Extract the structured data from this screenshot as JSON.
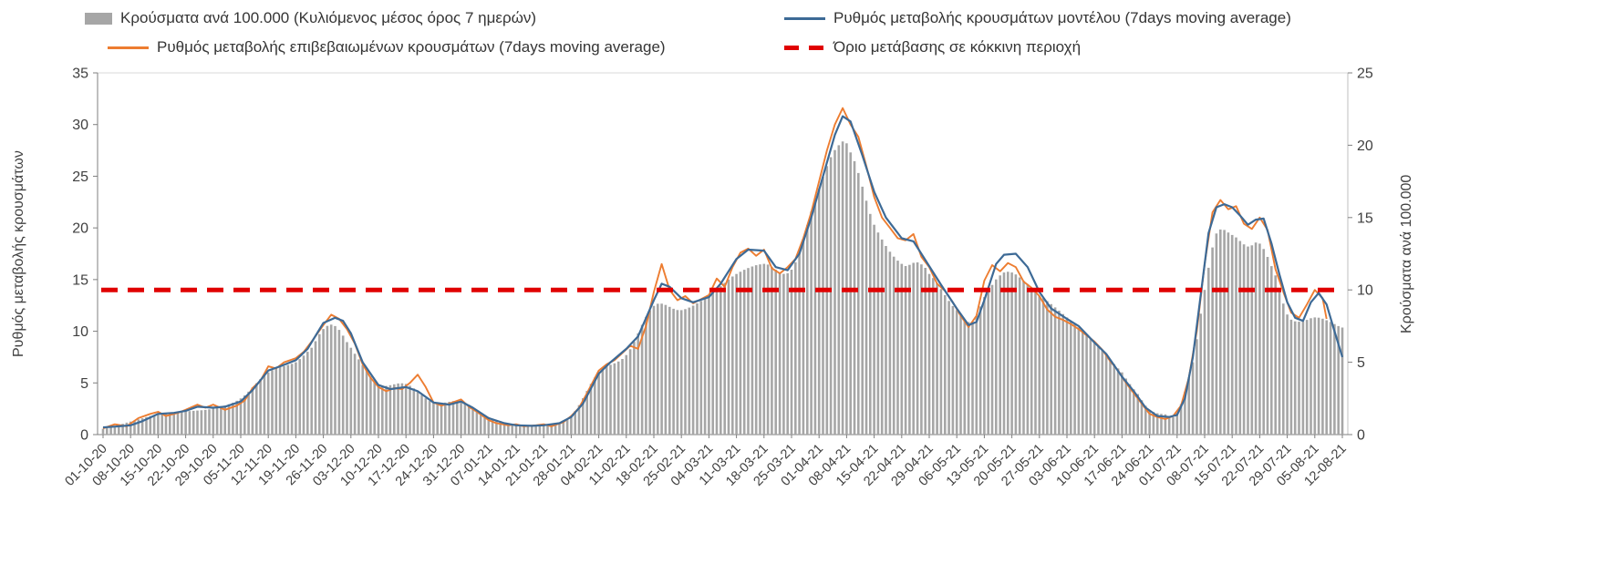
{
  "legend": {
    "bars": "Κρούσματα ανά 100.000 (Κυλιόμενος μέσος όρος 7 ημερών)",
    "model": "Ρυθμός μεταβολής κρουσμάτων μοντέλου (7days moving average)",
    "confirmed": "Ρυθμός μεταβολής επιβεβαιωμένων κρουσμάτων (7days moving average)",
    "threshold": "Όριο μετάβασης σε κόκκινη περιοχή"
  },
  "axes": {
    "left_title": "Ρυθμός μεταβολής κρουσμάτων",
    "right_title": "Κρούσματα ανά 100.000",
    "left_ticks": [
      0,
      5,
      10,
      15,
      20,
      25,
      30,
      35
    ],
    "right_ticks": [
      0,
      5,
      10,
      15,
      20,
      25
    ],
    "left_range": [
      0,
      35
    ],
    "right_range": [
      0,
      25
    ]
  },
  "colors": {
    "bars": "#a6a6a6",
    "model": "#3d6a96",
    "confirmed": "#ed7d31",
    "threshold": "#e00000",
    "axis": "#7f7f7f",
    "frame": "#d9d9d9",
    "text": "#404040"
  },
  "chart_data": {
    "type": "combo-bar-line",
    "x_unit": "days since 01-10-20",
    "x_tick_interval_days": 7,
    "categories": [
      "01-10-20",
      "08-10-20",
      "15-10-20",
      "22-10-20",
      "29-10-20",
      "05-11-20",
      "12-11-20",
      "19-11-20",
      "26-11-20",
      "03-12-20",
      "10-12-20",
      "17-12-20",
      "24-12-20",
      "31-12-20",
      "07-01-21",
      "14-01-21",
      "21-01-21",
      "28-01-21",
      "04-02-21",
      "11-02-21",
      "18-02-21",
      "25-02-21",
      "04-03-21",
      "11-03-21",
      "18-03-21",
      "25-03-21",
      "01-04-21",
      "08-04-21",
      "15-04-21",
      "22-04-21",
      "29-04-21",
      "06-05-21",
      "13-05-21",
      "20-05-21",
      "27-05-21",
      "03-06-21",
      "10-06-21",
      "17-06-21",
      "24-06-21",
      "01-07-21",
      "08-07-21",
      "15-07-21",
      "22-07-21",
      "29-07-21",
      "05-08-21",
      "12-08-21"
    ],
    "threshold": {
      "name": "Όριο μετάβασης σε κόκκινη περιοχή",
      "left_axis_value": 14,
      "right_axis_value": 10
    },
    "series": [
      {
        "name": "Κρούσματα ανά 100.000 (Κυλιόμενος μέσος όρος 7 ημερών)",
        "type": "bar",
        "axis": "right",
        "x": [
          0,
          7,
          14,
          21,
          28,
          35,
          42,
          49,
          53,
          56,
          59,
          63,
          66,
          70,
          77,
          84,
          91,
          98,
          105,
          112,
          119,
          126,
          133,
          140,
          147,
          154,
          161,
          168,
          175,
          182,
          187,
          190,
          196,
          203,
          207,
          210,
          217,
          221,
          224,
          228,
          231,
          235,
          238,
          245,
          252,
          259,
          263,
          266,
          270,
          273,
          277,
          280,
          283,
          287,
          291,
          294,
          298,
          301,
          304,
          308,
          311,
          315
        ],
        "values": [
          0.4,
          0.9,
          1.4,
          1.6,
          1.8,
          2.5,
          4.3,
          5.0,
          6.0,
          7.3,
          7.5,
          6.0,
          4.8,
          3.4,
          3.5,
          2.2,
          2.3,
          1.2,
          0.7,
          0.7,
          1.3,
          4.3,
          5.5,
          8.9,
          8.6,
          9.6,
          11.1,
          11.8,
          11.4,
          17.0,
          20.0,
          19.5,
          14.5,
          11.8,
          11.9,
          11.1,
          8.6,
          7.8,
          9.5,
          11.0,
          11.2,
          10.4,
          9.6,
          8.1,
          6.4,
          4.3,
          2.8,
          1.7,
          1.4,
          1.5,
          5.0,
          10.0,
          13.9,
          13.8,
          13.0,
          13.2,
          11.0,
          8.3,
          7.8,
          8.1,
          7.9,
          7.4
        ]
      },
      {
        "name": "Ρυθμός μεταβολής κρουσμάτων μοντέλου (7days moving average)",
        "type": "line",
        "axis": "left",
        "x": [
          0,
          4,
          7,
          10,
          14,
          18,
          21,
          24,
          28,
          31,
          35,
          38,
          42,
          45,
          49,
          52,
          56,
          59,
          61,
          63,
          66,
          70,
          73,
          77,
          80,
          84,
          88,
          91,
          94,
          98,
          102,
          105,
          109,
          112,
          116,
          119,
          122,
          126,
          129,
          133,
          136,
          140,
          142,
          144,
          147,
          150,
          154,
          157,
          161,
          164,
          168,
          171,
          174,
          177,
          180,
          183,
          186,
          188,
          190,
          193,
          196,
          199,
          203,
          206,
          210,
          213,
          217,
          220,
          222,
          224,
          227,
          229,
          232,
          235,
          238,
          241,
          245,
          248,
          252,
          255,
          259,
          262,
          265,
          268,
          271,
          273,
          275,
          277,
          279,
          281,
          283,
          285,
          287,
          289,
          291,
          293,
          295,
          297,
          299,
          301,
          303,
          305,
          307,
          309,
          311,
          313,
          315
        ],
        "values": [
          0.7,
          0.8,
          0.9,
          1.3,
          2.0,
          2.1,
          2.3,
          2.7,
          2.6,
          2.7,
          3.2,
          4.3,
          6.2,
          6.6,
          7.2,
          8.3,
          10.8,
          11.3,
          11.0,
          9.8,
          7.0,
          4.8,
          4.4,
          4.6,
          4.2,
          3.1,
          2.9,
          3.2,
          2.6,
          1.6,
          1.1,
          0.9,
          0.85,
          0.9,
          1.1,
          1.7,
          3.0,
          5.9,
          7.0,
          8.3,
          9.5,
          13.0,
          14.6,
          14.3,
          13.2,
          12.8,
          13.3,
          14.6,
          17.0,
          17.9,
          17.8,
          16.2,
          15.9,
          17.5,
          21.0,
          25.0,
          29.0,
          30.8,
          30.3,
          27.0,
          23.5,
          21.0,
          19.0,
          18.7,
          16.3,
          14.5,
          12.2,
          10.6,
          10.9,
          13.0,
          16.5,
          17.4,
          17.5,
          16.2,
          13.8,
          12.2,
          11.2,
          10.5,
          8.9,
          7.8,
          5.6,
          4.2,
          2.6,
          1.8,
          1.7,
          1.9,
          3.5,
          7.5,
          13.5,
          19.5,
          22.0,
          22.3,
          22.0,
          21.2,
          20.3,
          20.8,
          20.9,
          18.5,
          15.5,
          12.8,
          11.3,
          11.0,
          12.8,
          13.7,
          12.6,
          10.0,
          7.5
        ]
      },
      {
        "name": "Ρυθμός μεταβολής επιβεβαιωμένων κρουσμάτων (7days moving average)",
        "type": "line",
        "axis": "left",
        "x": [
          0,
          3,
          6,
          9,
          12,
          14,
          16,
          19,
          21,
          24,
          26,
          28,
          31,
          34,
          36,
          38,
          40,
          42,
          44,
          46,
          49,
          51,
          53,
          56,
          58,
          60,
          62,
          64,
          66,
          68,
          70,
          72,
          74,
          76,
          78,
          80,
          82,
          84,
          86,
          88,
          91,
          93,
          95,
          98,
          100,
          103,
          105,
          107,
          110,
          112,
          114,
          117,
          119,
          121,
          123,
          126,
          128,
          130,
          132,
          134,
          136,
          138,
          140,
          142,
          144,
          146,
          148,
          150,
          152,
          154,
          156,
          158,
          160,
          162,
          164,
          166,
          168,
          170,
          172,
          174,
          176,
          178,
          180,
          182,
          184,
          186,
          188,
          190,
          192,
          194,
          196,
          198,
          200,
          202,
          204,
          206,
          208,
          210,
          212,
          214,
          216,
          218,
          220,
          222,
          224,
          226,
          228,
          230,
          232,
          234,
          236,
          238,
          240,
          242,
          244,
          246,
          248,
          250,
          252,
          254,
          256,
          258,
          260,
          262,
          264,
          266,
          268,
          270,
          272,
          274,
          276,
          278,
          280,
          282,
          284,
          286,
          288,
          290,
          292,
          294,
          296,
          298,
          300,
          302,
          304,
          306,
          308,
          310,
          311
        ],
        "values": [
          0.6,
          1.0,
          0.8,
          1.6,
          2.0,
          2.2,
          1.8,
          2.1,
          2.4,
          2.9,
          2.6,
          2.9,
          2.4,
          2.8,
          3.3,
          4.5,
          5.2,
          6.6,
          6.4,
          7.0,
          7.4,
          8.0,
          9.0,
          10.6,
          11.6,
          11.2,
          10.2,
          8.8,
          6.8,
          5.5,
          4.6,
          4.2,
          4.5,
          4.4,
          5.0,
          5.8,
          4.6,
          3.1,
          2.8,
          3.0,
          3.4,
          2.7,
          2.2,
          1.4,
          1.1,
          0.9,
          1.0,
          0.8,
          0.9,
          1.0,
          0.8,
          1.2,
          1.8,
          2.6,
          4.0,
          6.2,
          6.8,
          7.2,
          7.9,
          8.6,
          8.3,
          10.5,
          13.8,
          16.5,
          14.0,
          13.0,
          13.4,
          12.7,
          13.1,
          13.5,
          15.1,
          14.3,
          16.2,
          17.6,
          18.0,
          17.3,
          17.9,
          16.1,
          15.6,
          16.2,
          17.0,
          19.0,
          21.5,
          24.5,
          27.5,
          30.0,
          31.6,
          30.0,
          28.8,
          26.0,
          23.0,
          21.0,
          20.0,
          19.0,
          18.8,
          19.4,
          17.2,
          16.2,
          14.6,
          13.9,
          12.8,
          11.5,
          10.4,
          11.5,
          14.9,
          16.4,
          15.8,
          16.6,
          16.2,
          14.8,
          14.2,
          13.4,
          12.1,
          11.4,
          11.1,
          10.7,
          10.2,
          9.6,
          9.0,
          8.2,
          7.1,
          6.2,
          5.0,
          4.0,
          3.0,
          2.0,
          1.7,
          1.5,
          1.8,
          2.8,
          5.5,
          10.0,
          16.5,
          21.5,
          22.7,
          21.8,
          22.1,
          20.4,
          19.9,
          21.0,
          19.8,
          16.0,
          13.8,
          11.8,
          11.3,
          12.6,
          14.0,
          13.2,
          11.2
        ]
      }
    ]
  }
}
